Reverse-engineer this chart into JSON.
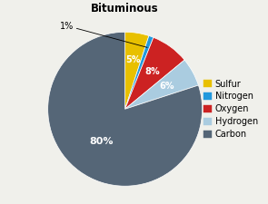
{
  "title": "Bituminous",
  "slices": [
    {
      "label": "Sulfur",
      "value": 5,
      "color": "#E8C000",
      "pct_label": "5%"
    },
    {
      "label": "Nitrogen",
      "value": 1,
      "color": "#2299DD",
      "pct_label": "1%"
    },
    {
      "label": "Oxygen",
      "value": 8,
      "color": "#CC2222",
      "pct_label": "8%"
    },
    {
      "label": "Hydrogen",
      "value": 6,
      "color": "#AACCE0",
      "pct_label": "6%"
    },
    {
      "label": "Carbon",
      "value": 80,
      "color": "#556677",
      "pct_label": "80%"
    }
  ],
  "start_angle": 90,
  "background_color": "#f0f0eb",
  "title_fontsize": 8.5,
  "label_fontsize": 7,
  "legend_fontsize": 7
}
